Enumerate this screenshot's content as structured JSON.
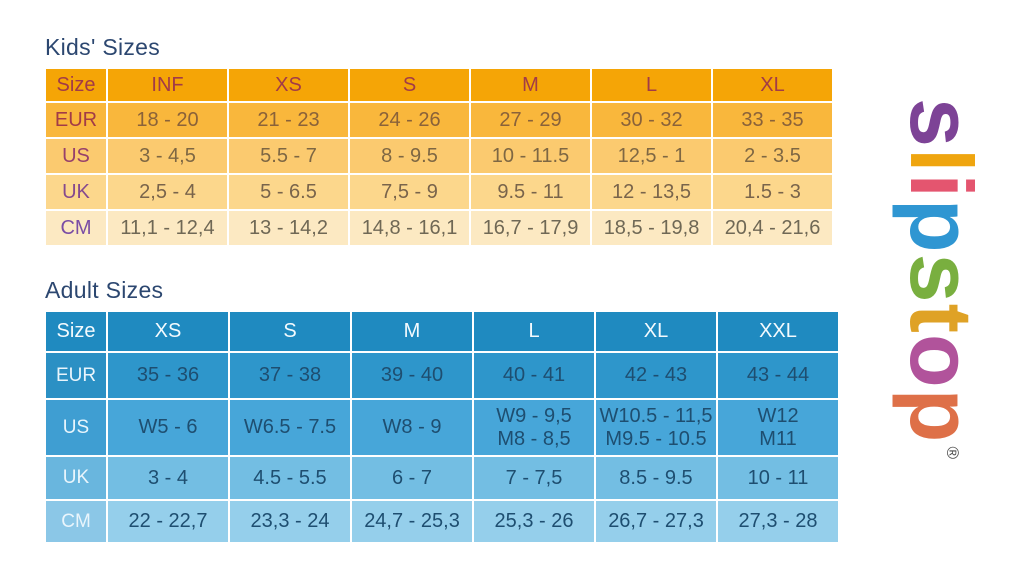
{
  "colors": {
    "title-text": "#2C4770",
    "grid-line": "#FFFFFF",
    "kids-header-bg": "#F5A506",
    "kids-header-text": "#A23B47",
    "kids-row-eur-bg": "#F9B73C",
    "kids-row-us-bg": "#FBCA6F",
    "kids-row-uk-bg": "#FCD78C",
    "kids-row-cm-bg": "#FCE9C2",
    "adult-header-bg": "#1F8AC0",
    "adult-header-text": "#F3FAFE",
    "adult-label-text": "#E9F5FC",
    "adult-data-text": "#1E4E70",
    "adult-row-eur-bg": "#2E96CB",
    "adult-row-eur-label-bg": "#2B90C4",
    "adult-row-us-bg": "#47A6D9",
    "adult-row-us-label-bg": "#3F9ED2",
    "adult-row-uk-bg": "#73BEE3",
    "adult-row-uk-label-bg": "#69B6DE",
    "adult-row-cm-bg": "#95CFEB",
    "adult-row-cm-label-bg": "#8BC7E7",
    "logo-mark": "#4A4A4A"
  },
  "chart_data": [
    {
      "type": "table",
      "title": "Kids' Sizes",
      "header": [
        "Size",
        "INF",
        "XS",
        "S",
        "M",
        "L",
        "XL"
      ],
      "rows": [
        {
          "label": "EUR",
          "label_color": "#A23B47",
          "value_color": "#8A6239",
          "values": [
            "18 - 20",
            "21 - 23",
            "24 - 26",
            "27 - 29",
            "30 - 32",
            "33 - 35"
          ]
        },
        {
          "label": "US",
          "label_color": "#97406B",
          "value_color": "#7E6743",
          "values": [
            "3 - 4,5",
            "5.5 - 7",
            "8 - 9.5",
            "10 - 11.5",
            "12,5 - 1",
            "2 - 3.5"
          ]
        },
        {
          "label": "UK",
          "label_color": "#85498E",
          "value_color": "#79644B",
          "values": [
            "2,5 - 4",
            "5 - 6.5",
            "7,5 - 9",
            "9.5 - 11",
            "12 - 13,5",
            "1.5 - 3"
          ]
        },
        {
          "label": "CM",
          "label_color": "#7A4DA5",
          "value_color": "#6F6855",
          "values": [
            "11,1 - 12,4",
            "13 - 14,2",
            "14,8 - 16,1",
            "16,7 - 17,9",
            "18,5 - 19,8",
            "20,4 - 21,6"
          ]
        }
      ]
    },
    {
      "type": "table",
      "title": "Adult Sizes",
      "header": [
        "Size",
        "XS",
        "S",
        "M",
        "L",
        "XL",
        "XXL"
      ],
      "rows": [
        {
          "label": "EUR",
          "values": [
            "35 - 36",
            "37 - 38",
            "39 - 40",
            "40 - 41",
            "42 - 43",
            "43 - 44"
          ]
        },
        {
          "label": "US",
          "values": [
            "W5 - 6",
            "W6.5 - 7.5",
            "W8 - 9",
            "W9 - 9,5\nM8 - 8,5",
            "W10.5 - 11,5\nM9.5 - 10.5",
            "W12\nM11"
          ]
        },
        {
          "label": "UK",
          "values": [
            "3 - 4",
            "4.5 - 5.5",
            "6 - 7",
            "7 - 7,5",
            "8.5 - 9.5",
            "10 - 11"
          ]
        },
        {
          "label": "CM",
          "values": [
            "22 - 22,7",
            "23,3 - 24",
            "24,7 - 25,3",
            "25,3 - 26",
            "26,7 - 27,3",
            "27,3 - 28"
          ]
        }
      ]
    }
  ],
  "logo": {
    "text": "slipstop",
    "registered_mark": "®",
    "letters": [
      {
        "char": "s",
        "color": "#7D4396"
      },
      {
        "char": "l",
        "color": "#EFA50F"
      },
      {
        "char": "i",
        "color": "#E4556F"
      },
      {
        "char": "p",
        "color": "#2F96D2"
      },
      {
        "char": "s",
        "color": "#79AF3F"
      },
      {
        "char": "t",
        "color": "#DFA226"
      },
      {
        "char": "o",
        "color": "#B1539B"
      },
      {
        "char": "p",
        "color": "#DE7048"
      }
    ]
  }
}
